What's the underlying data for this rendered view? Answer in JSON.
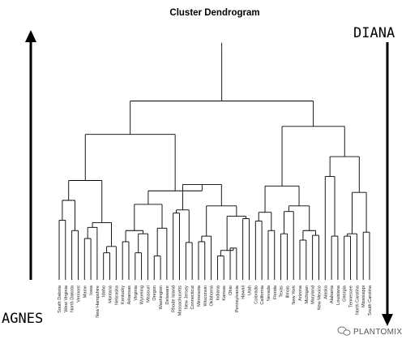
{
  "title": "Cluster Dendrogram",
  "labels": {
    "top_right": "DIANA",
    "bottom_left": "AGNES"
  },
  "watermark": {
    "text": "PLANTOMIX",
    "icon": "wechat-icon"
  },
  "leaves": [
    "South Dakota",
    "West Virginia",
    "North Dakota",
    "Vermont",
    "Maine",
    "Iowa",
    "New Hampshire",
    "Idaho",
    "Montana",
    "Nebraska",
    "Kentucky",
    "Arkansas",
    "Virginia",
    "Wyoming",
    "Missouri",
    "Oregon",
    "Washington",
    "Delaware",
    "Rhode Island",
    "Massachusetts",
    "New Jersey",
    "Connecticut",
    "Minnesota",
    "Wisconsin",
    "Oklahoma",
    "Indiana",
    "Kansas",
    "Ohio",
    "Pennsylvania",
    "Hawaii",
    "Utah",
    "Colorado",
    "California",
    "Nevada",
    "Florida",
    "Texas",
    "Illinois",
    "New York",
    "Arizona",
    "Michigan",
    "Maryland",
    "New Mexico",
    "Alaska",
    "Alabama",
    "Louisiana",
    "Georgia",
    "Tennessee",
    "North Carolina",
    "Mississippi",
    "South Carolina"
  ],
  "tree": {
    "height": 290,
    "children": [
      {
        "height": 225,
        "children": [
          {
            "height": 183,
            "children": [
              {
                "height": 125,
                "children": [
                  {
                    "height": 100,
                    "children": [
                      {
                        "height": 75,
                        "children": [
                          {
                            "leaf": 0
                          },
                          {
                            "leaf": 1
                          }
                        ]
                      },
                      {
                        "height": 62,
                        "children": [
                          {
                            "leaf": 2
                          },
                          {
                            "leaf": 3
                          }
                        ]
                      }
                    ]
                  },
                  {
                    "height": 72,
                    "children": [
                      {
                        "height": 66,
                        "children": [
                          {
                            "height": 52,
                            "children": [
                              {
                                "leaf": 4
                              },
                              {
                                "leaf": 5
                              }
                            ]
                          },
                          {
                            "leaf": 6
                          }
                        ]
                      },
                      {
                        "height": 42,
                        "children": [
                          {
                            "height": 34,
                            "children": [
                              {
                                "leaf": 7
                              },
                              {
                                "leaf": 8
                              }
                            ]
                          },
                          {
                            "leaf": 9
                          }
                        ]
                      }
                    ]
                  }
                ]
              },
              {
                "height": 112,
                "children": [
                  {
                    "height": 95,
                    "children": [
                      {
                        "height": 62,
                        "children": [
                          {
                            "height": 48,
                            "children": [
                              {
                                "leaf": 10
                              },
                              {
                                "leaf": 11
                              }
                            ]
                          },
                          {
                            "height": 58,
                            "children": [
                              {
                                "height": 34,
                                "children": [
                                  {
                                    "leaf": 12
                                  },
                                  {
                                    "leaf": 13
                                  }
                                ]
                              },
                              {
                                "leaf": 14
                              }
                            ]
                          }
                        ]
                      },
                      {
                        "height": 65,
                        "children": [
                          {
                            "height": 30,
                            "children": [
                              {
                                "leaf": 15
                              },
                              {
                                "leaf": 16
                              }
                            ]
                          },
                          {
                            "leaf": 17
                          }
                        ]
                      }
                    ]
                  },
                  {
                    "height": 120,
                    "children": [
                      {
                        "height": 88,
                        "children": [
                          {
                            "height": 84,
                            "children": [
                              {
                                "leaf": 18
                              },
                              {
                                "leaf": 19
                              }
                            ]
                          },
                          {
                            "height": 47,
                            "children": [
                              {
                                "leaf": 20
                              },
                              {
                                "leaf": 21
                              }
                            ]
                          }
                        ]
                      },
                      {
                        "height": 93,
                        "children": [
                          {
                            "height": 55,
                            "children": [
                              {
                                "height": 48,
                                "children": [
                                  {
                                    "leaf": 22
                                  },
                                  {
                                    "leaf": 23
                                  }
                                ]
                              },
                              {
                                "leaf": 24
                              }
                            ]
                          },
                          {
                            "height": 80,
                            "children": [
                              {
                                "height": 37,
                                "children": [
                                  {
                                    "height": 30,
                                    "children": [
                                      {
                                        "leaf": 25
                                      },
                                      {
                                        "leaf": 26
                                      }
                                    ]
                                  },
                                  {
                                    "height": 40,
                                    "children": [
                                      {
                                        "leaf": 27
                                      },
                                      {
                                        "leaf": 28
                                      }
                                    ]
                                  }
                                ]
                              },
                              {
                                "height": 77,
                                "children": [
                                  {
                                    "leaf": 29
                                  },
                                  {
                                    "leaf": 30
                                  }
                                ]
                              }
                            ]
                          }
                        ]
                      }
                    ]
                  }
                ]
              }
            ]
          },
          {
            "height": 193,
            "children": [
              {
                "height": 118,
                "children": [
                  {
                    "height": 85,
                    "children": [
                      {
                        "height": 74,
                        "children": [
                          {
                            "leaf": 31
                          },
                          {
                            "leaf": 32
                          }
                        ]
                      },
                      {
                        "height": 62,
                        "children": [
                          {
                            "leaf": 33
                          },
                          {
                            "leaf": 34
                          }
                        ]
                      }
                    ]
                  },
                  {
                    "height": 93,
                    "children": [
                      {
                        "height": 86,
                        "children": [
                          {
                            "height": 58,
                            "children": [
                              {
                                "leaf": 35
                              },
                              {
                                "leaf": 36
                              }
                            ]
                          },
                          {
                            "leaf": 37
                          }
                        ]
                      },
                      {
                        "height": 62,
                        "children": [
                          {
                            "height": 50,
                            "children": [
                              {
                                "leaf": 38
                              },
                              {
                                "leaf": 39
                              }
                            ]
                          },
                          {
                            "height": 56,
                            "children": [
                              {
                                "leaf": 40
                              },
                              {
                                "leaf": 41
                              }
                            ]
                          }
                        ]
                      }
                    ]
                  }
                ]
              },
              {
                "height": 155,
                "children": [
                  {
                    "height": 130,
                    "children": [
                      {
                        "leaf": 42
                      },
                      {
                        "height": 55,
                        "children": [
                          {
                            "leaf": 43
                          },
                          {
                            "leaf": 44
                          }
                        ]
                      }
                    ]
                  },
                  {
                    "height": 110,
                    "children": [
                      {
                        "height": 58,
                        "children": [
                          {
                            "height": 55,
                            "children": [
                              {
                                "leaf": 45
                              },
                              {
                                "leaf": 46
                              }
                            ]
                          },
                          {
                            "leaf": 47
                          }
                        ]
                      },
                      {
                        "height": 60,
                        "children": [
                          {
                            "leaf": 48
                          },
                          {
                            "leaf": 49
                          }
                        ]
                      }
                    ]
                  }
                ]
              }
            ]
          }
        ]
      }
    ]
  }
}
